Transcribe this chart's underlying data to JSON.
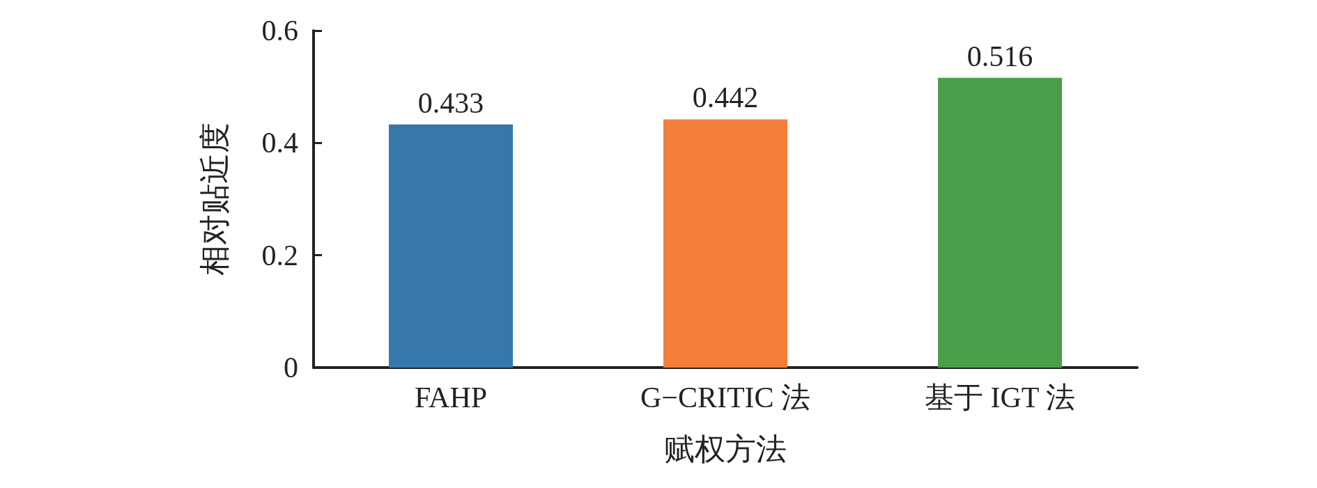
{
  "chart_data": {
    "type": "bar",
    "xlabel": "赋权方法",
    "ylabel": "相对贴近度",
    "categories": [
      "FAHP",
      "G−CRITIC 法",
      "基于 IGT 法"
    ],
    "values": [
      0.433,
      0.442,
      0.516
    ],
    "colors": [
      "#3778ac",
      "#f47f3a",
      "#4a9e4a"
    ],
    "ylim": [
      0,
      0.6
    ],
    "yticks": [
      0,
      0.2,
      0.4,
      0.6
    ],
    "data_labels": true,
    "grid": false
  }
}
